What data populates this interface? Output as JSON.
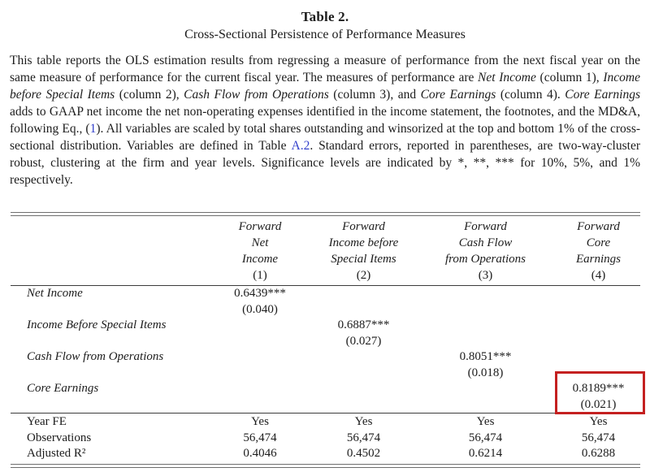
{
  "page": {
    "title": "Table 2.",
    "subtitle": "Cross-Sectional Persistence of Performance Measures"
  },
  "colors": {
    "highlight_box": "#c42020",
    "link": "#3340cc",
    "text": "#1c1c1c",
    "rule_double": "#6e6e6e",
    "rule_single": "#3c3c3c"
  },
  "caption": {
    "segments": [
      {
        "t": "This table reports the OLS estimation results from regressing a measure of performance from the next fiscal year on the same measure of performance for the current fiscal year. The measures of performance are ",
        "s": "n"
      },
      {
        "t": "Net Income",
        "s": "i"
      },
      {
        "t": " (column 1), ",
        "s": "n"
      },
      {
        "t": "Income before Special Items",
        "s": "i"
      },
      {
        "t": " (column 2), ",
        "s": "n"
      },
      {
        "t": "Cash Flow from Operations",
        "s": "i"
      },
      {
        "t": " (column 3), and ",
        "s": "n"
      },
      {
        "t": "Core Earnings",
        "s": "i"
      },
      {
        "t": " (column 4). ",
        "s": "n"
      },
      {
        "t": "Core Earnings",
        "s": "i"
      },
      {
        "t": " adds to GAAP net income the net non-operating expenses identified in the income statement, the footnotes, and the MD&A, following Eq., (",
        "s": "n"
      },
      {
        "t": "1",
        "s": "link"
      },
      {
        "t": "). All variables are scaled by total shares outstanding and winsorized at the top and bottom 1% of the cross-sectional distribution. Variables are defined in Table ",
        "s": "n"
      },
      {
        "t": "A.2",
        "s": "link"
      },
      {
        "t": ". Standard errors, reported in parentheses, are two-way-cluster robust, clustering at the firm and year levels. Significance levels are indicated by *, **, *** for 10%, 5%, and 1% respectively.",
        "s": "n"
      }
    ]
  },
  "table": {
    "header": {
      "col1": {
        "l1": "Forward",
        "l2": "Net",
        "l3": "Income",
        "num": "(1)"
      },
      "col2": {
        "l1": "Forward",
        "l2": "Income before",
        "l3": "Special Items",
        "num": "(2)"
      },
      "col3": {
        "l1": "Forward",
        "l2": "Cash Flow",
        "l3": "from Operations",
        "num": "(3)"
      },
      "col4": {
        "l1": "Forward",
        "l2": "Core",
        "l3": "Earnings",
        "num": "(4)"
      }
    },
    "rows": [
      {
        "label": "Net Income",
        "c1": "0.6439***",
        "c2": "",
        "c3": "",
        "c4": "",
        "s1": "(0.040)",
        "s2": "",
        "s3": "",
        "s4": ""
      },
      {
        "label": "Income Before Special Items",
        "c1": "",
        "c2": "0.6887***",
        "c3": "",
        "c4": "",
        "s1": "",
        "s2": "(0.027)",
        "s3": "",
        "s4": ""
      },
      {
        "label": "Cash Flow from Operations",
        "c1": "",
        "c2": "",
        "c3": "0.8051***",
        "c4": "",
        "s1": "",
        "s2": "",
        "s3": "(0.018)",
        "s4": ""
      },
      {
        "label": "Core Earnings",
        "c1": "",
        "c2": "",
        "c3": "",
        "c4": "0.8189***",
        "s1": "",
        "s2": "",
        "s3": "",
        "s4": "(0.021)"
      }
    ],
    "footer": [
      {
        "label": "Year FE",
        "v1": "Yes",
        "v2": "Yes",
        "v3": "Yes",
        "v4": "Yes"
      },
      {
        "label": "Observations",
        "v1": "56,474",
        "v2": "56,474",
        "v3": "56,474",
        "v4": "56,474"
      },
      {
        "label": "Adjusted R²",
        "v1": "0.4046",
        "v2": "0.4502",
        "v3": "0.6214",
        "v4": "0.6288"
      }
    ]
  }
}
